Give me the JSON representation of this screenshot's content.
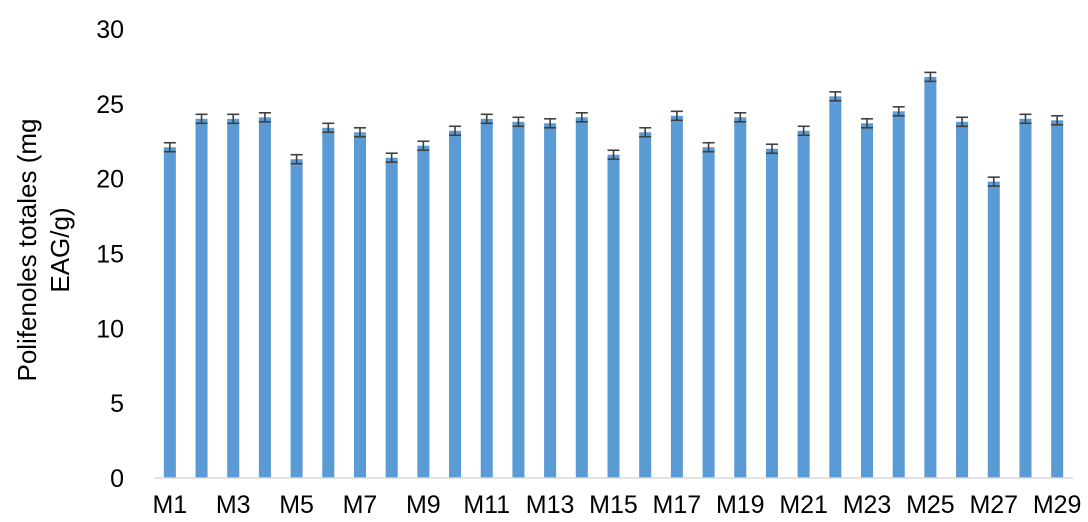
{
  "chart_data": {
    "type": "bar",
    "title": "",
    "xlabel": "",
    "ylabel": "Polifenoles totales (mg EAG/g)",
    "ylabel_lines": [
      "Polifenoles totales (mg",
      "EAG/g)"
    ],
    "ylim": [
      0,
      30
    ],
    "yticks": [
      0,
      5,
      10,
      15,
      20,
      25,
      30
    ],
    "grid": false,
    "legend": "none",
    "bar_color": "#5b9bd5",
    "error_bar_color": "#404040",
    "categories": [
      "M1",
      "M2",
      "M3",
      "M4",
      "M5",
      "M6",
      "M7",
      "M8",
      "M9",
      "M10",
      "M11",
      "M12",
      "M13",
      "M14",
      "M15",
      "M16",
      "M17",
      "M18",
      "M19",
      "M20",
      "M21",
      "M22",
      "M23",
      "M24",
      "M25",
      "M26",
      "M27",
      "M28",
      "M29"
    ],
    "xtick_labels_shown": [
      "M1",
      "M3",
      "M5",
      "M7",
      "M9",
      "M11",
      "M13",
      "M15",
      "M17",
      "M19",
      "M21",
      "M23",
      "M25",
      "M27",
      "M29"
    ],
    "values": [
      22.1,
      24.0,
      24.0,
      24.1,
      21.3,
      23.4,
      23.1,
      21.4,
      22.2,
      23.2,
      24.0,
      23.8,
      23.7,
      24.1,
      21.6,
      23.1,
      24.2,
      22.1,
      24.1,
      22.0,
      23.2,
      25.5,
      23.7,
      24.5,
      26.8,
      23.8,
      19.8,
      24.0,
      23.9
    ],
    "errors": [
      0.3,
      0.3,
      0.3,
      0.3,
      0.3,
      0.3,
      0.3,
      0.3,
      0.3,
      0.3,
      0.3,
      0.3,
      0.3,
      0.3,
      0.3,
      0.3,
      0.3,
      0.3,
      0.3,
      0.3,
      0.3,
      0.3,
      0.3,
      0.3,
      0.3,
      0.3,
      0.3,
      0.3,
      0.3
    ]
  }
}
